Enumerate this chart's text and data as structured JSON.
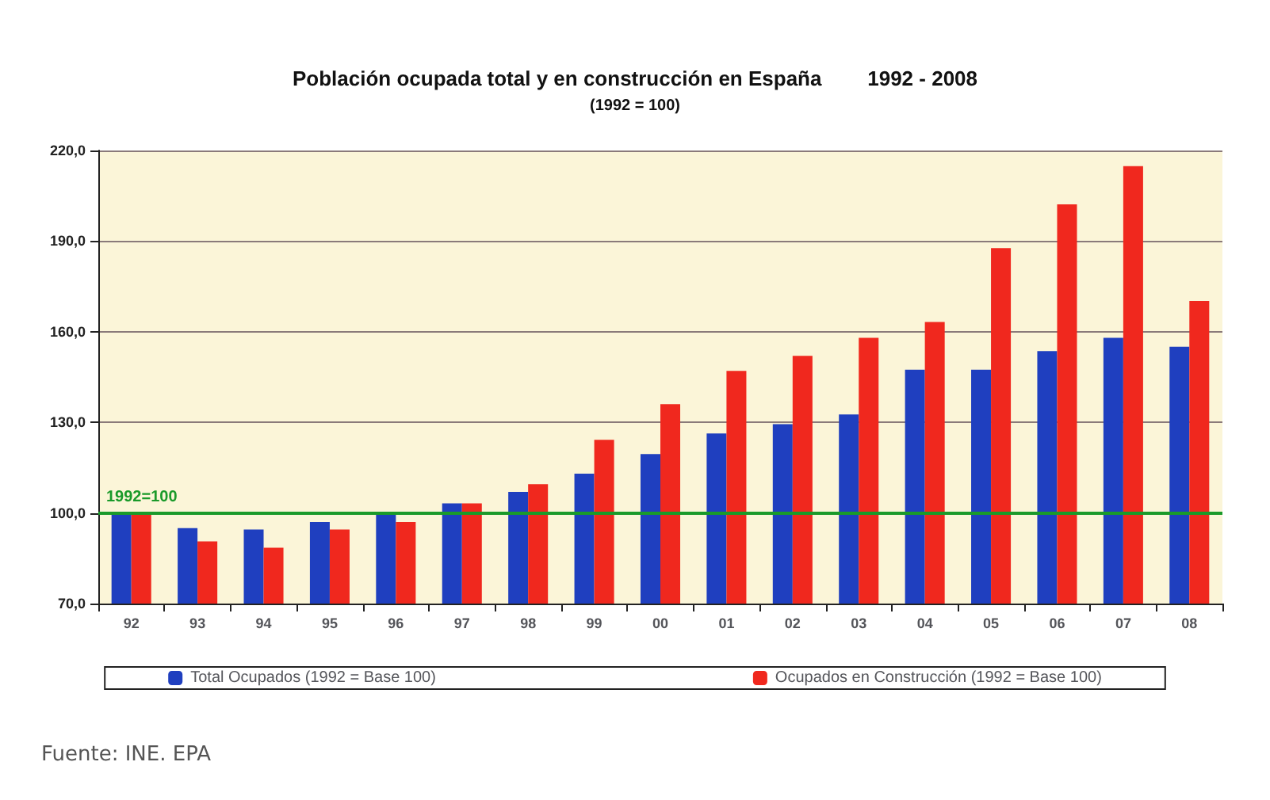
{
  "chart_data": {
    "type": "bar",
    "title": "Población ocupada total y en construcción en España        1992 - 2008",
    "subtitle": "(1992 = 100)",
    "categories": [
      "92",
      "93",
      "94",
      "95",
      "96",
      "97",
      "98",
      "99",
      "00",
      "01",
      "02",
      "03",
      "04",
      "05",
      "06",
      "07",
      "08"
    ],
    "series": [
      {
        "name": "Total Ocupados (1992 = Base 100)",
        "color": "#1f3fbf",
        "values": [
          100,
          95,
          94.5,
          97,
          99.4,
          103.2,
          107,
          113,
          119.5,
          126.3,
          129.4,
          132.6,
          147.4,
          147.4,
          153.6,
          158,
          155
        ]
      },
      {
        "name": "Ocupados en Construcción (1992 = Base 100)",
        "color": "#f0281e",
        "values": [
          100,
          90.6,
          88.5,
          94.5,
          97,
          103.2,
          109.5,
          124.2,
          136,
          147,
          152,
          158,
          163.2,
          187.7,
          202.2,
          214.8,
          170.2
        ]
      }
    ],
    "ylim": [
      70,
      220
    ],
    "yticks": [
      {
        "value": 70,
        "label": "70,0"
      },
      {
        "value": 100,
        "label": "100,0"
      },
      {
        "value": 130,
        "label": "130,0"
      },
      {
        "value": 160,
        "label": "160,0"
      },
      {
        "value": 190,
        "label": "190,0"
      },
      {
        "value": 220,
        "label": "220,0"
      }
    ],
    "grid": "y",
    "legend": "bottom",
    "ref_lines": [
      {
        "axis": "y",
        "value": 100,
        "label": "1992=100",
        "color": "#1a9a2a"
      }
    ],
    "annotations": [
      "Fuente: INE. EPA"
    ]
  }
}
